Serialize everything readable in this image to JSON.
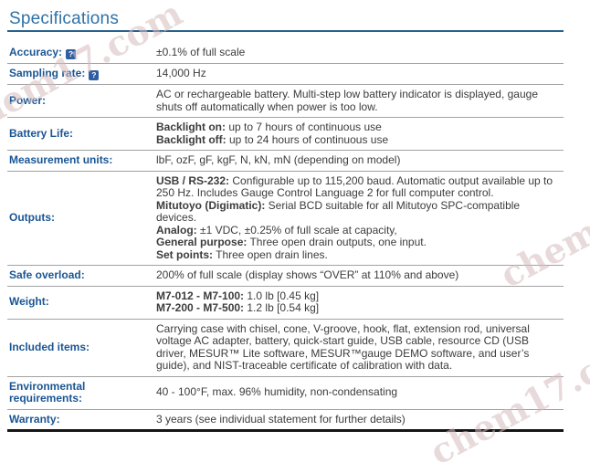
{
  "page": {
    "title": "Specifications"
  },
  "help_glyph": "?",
  "watermark": {
    "text": "chem17.com"
  },
  "colors": {
    "title": "#2e73a8",
    "title_rule": "#27628f",
    "label": "#1a5694",
    "value_text": "#3c3c3c",
    "row_separator": "#a2a2a2",
    "table_bottom_border": "#151515",
    "help_icon_bg": "#2e5fa3"
  },
  "rows": [
    {
      "label": "Accuracy:",
      "help": true,
      "lines": [
        [
          {
            "t": "±0.1% of full scale"
          }
        ]
      ]
    },
    {
      "label": "Sampling rate:",
      "help": true,
      "lines": [
        [
          {
            "t": "14,000 Hz"
          }
        ]
      ]
    },
    {
      "label": "Power:",
      "lines": [
        [
          {
            "t": "AC or rechargeable battery. Multi-step low battery indicator is displayed, gauge shuts off automatically when power is too low."
          }
        ]
      ]
    },
    {
      "label": "Battery Life:",
      "lines": [
        [
          {
            "t": "Backlight on:",
            "b": true
          },
          {
            "t": " up to 7 hours of continuous use"
          }
        ],
        [
          {
            "t": "Backlight off:",
            "b": true
          },
          {
            "t": " up to 24 hours of continuous use"
          }
        ]
      ]
    },
    {
      "label": "Measurement units:",
      "lines": [
        [
          {
            "t": "lbF, ozF, gF, kgF, N, kN, mN (depending on model)"
          }
        ]
      ]
    },
    {
      "label": "Outputs:",
      "lines": [
        [
          {
            "t": "USB / RS-232:",
            "b": true
          },
          {
            "t": " Configurable up to 115,200 baud. Automatic output available up to 250 Hz. Includes Gauge Control Language 2 for full computer control."
          }
        ],
        [
          {
            "t": "Mitutoyo (Digimatic):",
            "b": true
          },
          {
            "t": " Serial BCD suitable for all Mitutoyo SPC-compatible devices."
          }
        ],
        [
          {
            "t": "Analog:",
            "b": true
          },
          {
            "t": " ±1 VDC, ±0.25% of full scale at capacity,"
          }
        ],
        [
          {
            "t": "General purpose:",
            "b": true
          },
          {
            "t": " Three open drain outputs, one input."
          }
        ],
        [
          {
            "t": "Set points:",
            "b": true
          },
          {
            "t": " Three open drain lines."
          }
        ]
      ]
    },
    {
      "label": "Safe overload:",
      "lines": [
        [
          {
            "t": "200% of full scale (display shows “OVER” at 110% and above)"
          }
        ]
      ]
    },
    {
      "label": "Weight:",
      "lines": [
        [
          {
            "t": "M7-012 - M7-100:",
            "b": true
          },
          {
            "t": " 1.0 lb [0.45 kg]"
          }
        ],
        [
          {
            "t": "M7-200 - M7-500:",
            "b": true
          },
          {
            "t": " 1.2 lb [0.54 kg]"
          }
        ]
      ]
    },
    {
      "label": "Included items:",
      "lines": [
        [
          {
            "t": "Carrying case with chisel, cone, V-groove, hook, flat, extension rod, universal voltage AC adapter, battery, quick-start guide, USB cable, resource CD (USB driver, MESUR™ Lite software, MESUR™gauge DEMO software, and user’s guide), and NIST-traceable certificate of calibration with data."
          }
        ]
      ]
    },
    {
      "label": "Environmental requirements:",
      "lines": [
        [
          {
            "t": "40 - 100°F, max. 96% humidity, non-condensating"
          }
        ]
      ]
    },
    {
      "label": "Warranty:",
      "lines": [
        [
          {
            "t": "3 years (see individual statement for further details)"
          }
        ]
      ]
    }
  ]
}
